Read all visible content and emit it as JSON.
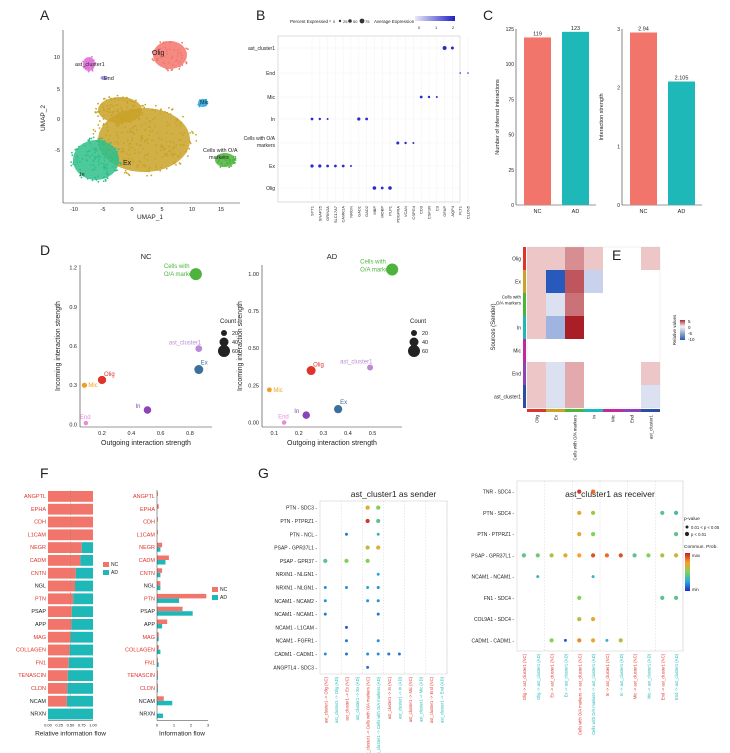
{
  "panel_letters": [
    "A",
    "B",
    "C",
    "D",
    "E",
    "F",
    "G"
  ],
  "colors": {
    "nc": "#f2756c",
    "ad": "#1fb8b8",
    "olig": "#f2756c",
    "ex": "#c9a227",
    "in": "#2fbf8a",
    "mic": "#2aa7de",
    "oa": "#4db33d",
    "ast": "#e06fd8",
    "end": "#9a8cd6"
  },
  "panel_a": {
    "xlabel": "UMAP_1",
    "ylabel": "UMAP_2",
    "xticks": [
      "-10",
      "-5",
      "0",
      "5",
      "10",
      "15"
    ],
    "yticks": [
      "10",
      "5",
      "0",
      "-5"
    ],
    "labels": [
      "Olig",
      "ast_cluster1",
      "End",
      "Mic",
      "In",
      "Ex",
      "Cells with O/A markers"
    ]
  },
  "panel_b": {
    "legend_pct_title": "Percent Expressed",
    "legend_pct_vals": [
      "0",
      "25",
      "50",
      "75"
    ],
    "legend_avg_title": "Average Expression",
    "legend_avg_vals": [
      "0",
      "1",
      "2"
    ],
    "rows": [
      "ast_cluster1",
      "End",
      "Mic",
      "In",
      "Cells with O/A markers",
      "Ex",
      "Olig"
    ],
    "genes": [
      "SYT1",
      "SNAP25",
      "GRIN2A",
      "SLC17A7",
      "CAMK2A",
      "NRGN",
      "GAD1",
      "GAD2",
      "MBP",
      "MOBP",
      "PLP1",
      "PDGFRA",
      "VCAN",
      "CSPG4",
      "CD3",
      "CSF1R",
      "C3",
      "GFAP",
      "AQP4",
      "FLT1",
      "CLDN5"
    ]
  },
  "chart_data": [
    {
      "type": "bar",
      "panel": "C-left",
      "categories": [
        "NC",
        "AD"
      ],
      "values": [
        119,
        123
      ],
      "data_labels": [
        "119",
        "123"
      ],
      "ylabel": "Number of inferred interactions",
      "yticks": [
        "0",
        "25",
        "50",
        "75",
        "100",
        "125"
      ],
      "ylim": [
        0,
        125
      ]
    },
    {
      "type": "bar",
      "panel": "C-right",
      "categories": [
        "NC",
        "AD"
      ],
      "values": [
        2.94,
        2.105
      ],
      "data_labels": [
        "2.94",
        "2.105"
      ],
      "ylabel": "Interaction strength",
      "yticks": [
        "0",
        "1",
        "2",
        "3"
      ],
      "ylim": [
        0,
        3
      ]
    },
    {
      "type": "scatter",
      "panel": "D-NC",
      "title": "NC",
      "xlabel": "Outgoing interaction strength",
      "ylabel": "Incoming interaction strength",
      "xticks": [
        "0.2",
        "0.4",
        "0.6",
        "0.8"
      ],
      "yticks": [
        "0.0",
        "0.3",
        "0.6",
        "0.9",
        "1.2"
      ],
      "points": [
        {
          "label": "Cells with O/A markers",
          "x": 0.84,
          "y": 1.15,
          "count": 60
        },
        {
          "label": "ast_cluster1",
          "x": 0.86,
          "y": 0.58,
          "count": 25
        },
        {
          "label": "Ex",
          "x": 0.86,
          "y": 0.42,
          "count": 40
        },
        {
          "label": "Olig",
          "x": 0.2,
          "y": 0.34,
          "count": 35
        },
        {
          "label": "Mic",
          "x": 0.08,
          "y": 0.3,
          "count": 15
        },
        {
          "label": "In",
          "x": 0.51,
          "y": 0.11,
          "count": 30
        },
        {
          "label": "End",
          "x": 0.09,
          "y": 0.01,
          "count": 10
        }
      ],
      "size_legend_title": "Count",
      "size_legend": [
        "20",
        "40",
        "60"
      ]
    },
    {
      "type": "scatter",
      "panel": "D-AD",
      "title": "AD",
      "xlabel": "Outgoing interaction strength",
      "ylabel": "Incoming interaction strength",
      "xticks": [
        "0.1",
        "0.2",
        "0.3",
        "0.4",
        "0.5"
      ],
      "yticks": [
        "0.00",
        "0.25",
        "0.50",
        "0.75",
        "1.00"
      ],
      "points": [
        {
          "label": "Cells with O/A markers",
          "x": 0.58,
          "y": 1.03,
          "count": 60
        },
        {
          "label": "ast_cluster1",
          "x": 0.49,
          "y": 0.37,
          "count": 20
        },
        {
          "label": "Olig",
          "x": 0.25,
          "y": 0.35,
          "count": 40
        },
        {
          "label": "Mic",
          "x": 0.08,
          "y": 0.22,
          "count": 12
        },
        {
          "label": "Ex",
          "x": 0.36,
          "y": 0.09,
          "count": 35
        },
        {
          "label": "In",
          "x": 0.23,
          "y": 0.05,
          "count": 30
        },
        {
          "label": "End",
          "x": 0.14,
          "y": 0.0,
          "count": 10
        }
      ],
      "size_legend_title": "Count",
      "size_legend": [
        "20",
        "40",
        "60"
      ]
    },
    {
      "type": "heatmap",
      "panel": "E",
      "ylabel": "Sources (Sender)",
      "rows": [
        "Olig",
        "Ex",
        "Cells with O/A markers",
        "In",
        "Mic",
        "End",
        "ast_cluster1"
      ],
      "cols": [
        "Olig",
        "Ex",
        "Cells with O/A markers",
        "In",
        "Mic",
        "End",
        "ast_cluster1"
      ],
      "values": [
        [
          1,
          1,
          3,
          1,
          0,
          0,
          1
        ],
        [
          1,
          -10,
          5,
          -2,
          0,
          0,
          0
        ],
        [
          1,
          -1,
          4,
          0,
          0,
          0,
          0
        ],
        [
          1,
          -4,
          7,
          0,
          0,
          0,
          0
        ],
        [
          0,
          0,
          0,
          0,
          0,
          0,
          0
        ],
        [
          1,
          -1,
          2,
          0,
          0,
          0,
          1
        ],
        [
          1,
          -1,
          2,
          0,
          0,
          0,
          -1
        ]
      ],
      "legend_title": "Relative values",
      "legend_vals": [
        "5",
        "0",
        "-5",
        "-10"
      ]
    },
    {
      "type": "bar",
      "panel": "F-left",
      "orientation": "horizontal-stacked",
      "categories": [
        "ANGPTL",
        "EPHA",
        "CDH",
        "L1CAM",
        "NEGR",
        "CADM",
        "CNTN",
        "NGL",
        "PTN",
        "PSAP",
        "APP",
        "MAG",
        "COLLAGEN",
        "FN1",
        "TENASCIN",
        "CLDN",
        "NCAM",
        "NRXN"
      ],
      "series": [
        {
          "name": "NC",
          "values": [
            1.0,
            1.0,
            1.0,
            1.0,
            0.75,
            0.72,
            0.62,
            0.6,
            0.56,
            0.53,
            0.52,
            0.5,
            0.48,
            0.46,
            0.44,
            0.43,
            0.42,
            0.0
          ]
        },
        {
          "name": "AD",
          "values": [
            0.0,
            0.0,
            0.0,
            0.0,
            0.25,
            0.28,
            0.38,
            0.4,
            0.44,
            0.47,
            0.48,
            0.5,
            0.52,
            0.54,
            0.56,
            0.57,
            0.58,
            1.0
          ]
        }
      ],
      "xlabel": "Relative information flow",
      "xticks": [
        "0.00",
        "0.25",
        "0.50",
        "0.75",
        "1.00"
      ]
    },
    {
      "type": "bar",
      "panel": "F-right",
      "orientation": "horizontal-grouped",
      "categories": [
        "ANGPTL",
        "EPHA",
        "CDH",
        "L1CAM",
        "NEGR",
        "CADM",
        "CNTN",
        "NGL",
        "PTN",
        "PSAP",
        "APP",
        "MAG",
        "COLLAGEN",
        "FN1",
        "TENASCIN",
        "CLDN",
        "NCAM",
        "NRXN"
      ],
      "series": [
        {
          "name": "NC",
          "values": [
            0.05,
            0.1,
            0.05,
            0.05,
            0.3,
            0.7,
            0.3,
            0.2,
            2.9,
            1.5,
            0.6,
            0.1,
            0.1,
            0.05,
            0.05,
            0.05,
            0.4,
            0.0
          ]
        },
        {
          "name": "AD",
          "values": [
            0.0,
            0.0,
            0.0,
            0.0,
            0.2,
            0.5,
            0.2,
            0.2,
            1.3,
            2.1,
            0.3,
            0.1,
            0.2,
            0.1,
            0.05,
            0.05,
            0.9,
            0.35
          ]
        }
      ],
      "xlabel": "Information flow",
      "xticks": [
        "0",
        "1",
        "2",
        "3"
      ]
    },
    {
      "type": "scatter",
      "panel": "G-left",
      "title": "ast_cluster1 as sender",
      "rows": [
        "PTN - SDC3",
        "PTN - PTPRZ1",
        "PTN - NCL",
        "PSAP - GPR37L1",
        "PSAP - GPR37",
        "NRXN1 - NLGN1",
        "NRXN1 - NLGN1",
        "NCAM1 - NCAM2",
        "NCAM1 - NCAM1",
        "NCAM1 - L1CAM",
        "NCAM1 - FGFR1",
        "CADM1 - CADM1",
        "ANGPTL4 - SDC3"
      ],
      "cols": [
        "ast_cluster1 -> Olig (NC)",
        "ast_cluster1 -> Olig (AD)",
        "ast_cluster1 -> Ex (NC)",
        "ast_cluster1 -> Ex (AD)",
        "ast_cluster1 -> Cells with O/A markers (NC)",
        "ast_cluster1 -> Cells with O/A markers (AD)",
        "ast_cluster1 -> In (NC)",
        "ast_cluster1 -> In (AD)",
        "ast_cluster1 -> Mic (NC)",
        "ast_cluster1 -> Mic (AD)",
        "ast_cluster1 -> End (NC)",
        "ast_cluster1 -> End (AD)"
      ],
      "points": [
        {
          "r": 0,
          "c": 4,
          "p": 0.7
        },
        {
          "r": 0,
          "c": 5,
          "p": 0.5
        },
        {
          "r": 1,
          "c": 4,
          "p": 0.95
        },
        {
          "r": 1,
          "c": 5,
          "p": 0.4
        },
        {
          "r": 2,
          "c": 2,
          "p": 0.15
        },
        {
          "r": 2,
          "c": 5,
          "p": 0.3
        },
        {
          "r": 3,
          "c": 4,
          "p": 0.6
        },
        {
          "r": 3,
          "c": 5,
          "p": 0.7
        },
        {
          "r": 4,
          "c": 0,
          "p": 0.4
        },
        {
          "r": 4,
          "c": 2,
          "p": 0.5
        },
        {
          "r": 4,
          "c": 4,
          "p": 0.5
        },
        {
          "r": 5,
          "c": 5,
          "p": 0.25
        },
        {
          "r": 6,
          "c": 0,
          "p": 0.2
        },
        {
          "r": 6,
          "c": 2,
          "p": 0.2
        },
        {
          "r": 6,
          "c": 4,
          "p": 0.25
        },
        {
          "r": 6,
          "c": 5,
          "p": 0.2
        },
        {
          "r": 7,
          "c": 0,
          "p": 0.2
        },
        {
          "r": 7,
          "c": 4,
          "p": 0.2
        },
        {
          "r": 7,
          "c": 5,
          "p": 0.2
        },
        {
          "r": 8,
          "c": 0,
          "p": 0.15
        },
        {
          "r": 8,
          "c": 5,
          "p": 0.15
        },
        {
          "r": 9,
          "c": 2,
          "p": 0.1
        },
        {
          "r": 10,
          "c": 2,
          "p": 0.15
        },
        {
          "r": 10,
          "c": 5,
          "p": 0.2
        },
        {
          "r": 11,
          "c": 0,
          "p": 0.2
        },
        {
          "r": 11,
          "c": 2,
          "p": 0.15
        },
        {
          "r": 11,
          "c": 4,
          "p": 0.2
        },
        {
          "r": 11,
          "c": 5,
          "p": 0.2
        },
        {
          "r": 11,
          "c": 6,
          "p": 0.15
        },
        {
          "r": 11,
          "c": 7,
          "p": 0.15
        },
        {
          "r": 12,
          "c": 4,
          "p": 0.15
        }
      ]
    },
    {
      "type": "scatter",
      "panel": "G-right",
      "title": "ast_cluster1 as receiver",
      "rows": [
        "TNR - SDC4",
        "PTN - SDC4",
        "PTN - PTPRZ1",
        "PSAP - GPR37L1",
        "NCAM1 - NCAM1",
        "FN1 - SDC4",
        "COL9A1 - SDC4",
        "CADM1 - CADM1"
      ],
      "cols": [
        "Olig -> ast_cluster1 (NC)",
        "Olig -> ast_cluster1 (AD)",
        "Ex -> ast_cluster1 (NC)",
        "Ex -> ast_cluster1 (AD)",
        "Cells with O/A markers -> ast_cluster1 (NC)",
        "Cells with O/A markers -> ast_cluster1 (AD)",
        "In -> ast_cluster1 (NC)",
        "In -> ast_cluster1 (AD)",
        "Mic -> ast_cluster1 (NC)",
        "Mic -> ast_cluster1 (AD)",
        "End -> ast_cluster1 (NC)",
        "End -> ast_cluster1 (AD)"
      ],
      "points": [
        {
          "r": 0,
          "c": 4,
          "p": 0.95
        },
        {
          "r": 0,
          "c": 5,
          "p": 0.85
        },
        {
          "r": 1,
          "c": 4,
          "p": 0.7
        },
        {
          "r": 1,
          "c": 5,
          "p": 0.55
        },
        {
          "r": 1,
          "c": 10,
          "p": 0.4
        },
        {
          "r": 1,
          "c": 11,
          "p": 0.35
        },
        {
          "r": 2,
          "c": 4,
          "p": 0.7
        },
        {
          "r": 2,
          "c": 5,
          "p": 0.5
        },
        {
          "r": 2,
          "c": 11,
          "p": 0.4
        },
        {
          "r": 3,
          "c": 0,
          "p": 0.4
        },
        {
          "r": 3,
          "c": 1,
          "p": 0.45
        },
        {
          "r": 3,
          "c": 2,
          "p": 0.6
        },
        {
          "r": 3,
          "c": 3,
          "p": 0.7
        },
        {
          "r": 3,
          "c": 4,
          "p": 0.75
        },
        {
          "r": 3,
          "c": 5,
          "p": 0.9
        },
        {
          "r": 3,
          "c": 6,
          "p": 0.85
        },
        {
          "r": 3,
          "c": 7,
          "p": 0.9
        },
        {
          "r": 3,
          "c": 8,
          "p": 0.4
        },
        {
          "r": 3,
          "c": 9,
          "p": 0.5
        },
        {
          "r": 3,
          "c": 10,
          "p": 0.6
        },
        {
          "r": 3,
          "c": 11,
          "p": 0.65
        },
        {
          "r": 4,
          "c": 1,
          "p": 0.3
        },
        {
          "r": 4,
          "c": 5,
          "p": 0.3
        },
        {
          "r": 5,
          "c": 4,
          "p": 0.5
        },
        {
          "r": 5,
          "c": 10,
          "p": 0.4
        },
        {
          "r": 5,
          "c": 11,
          "p": 0.4
        },
        {
          "r": 6,
          "c": 4,
          "p": 0.6
        },
        {
          "r": 6,
          "c": 5,
          "p": 0.7
        },
        {
          "r": 7,
          "c": 2,
          "p": 0.5
        },
        {
          "r": 7,
          "c": 3,
          "p": 0.1
        },
        {
          "r": 7,
          "c": 4,
          "p": 0.8
        },
        {
          "r": 7,
          "c": 5,
          "p": 0.7
        },
        {
          "r": 7,
          "c": 6,
          "p": 0.3
        },
        {
          "r": 7,
          "c": 7,
          "p": 0.6
        }
      ],
      "legend_pval_title": "p-value",
      "legend_pval": [
        "0.01 < p < 0.05",
        "p < 0.01"
      ],
      "legend_prob_title": "Commun. Prob.",
      "legend_prob": [
        "max",
        "min"
      ]
    }
  ]
}
